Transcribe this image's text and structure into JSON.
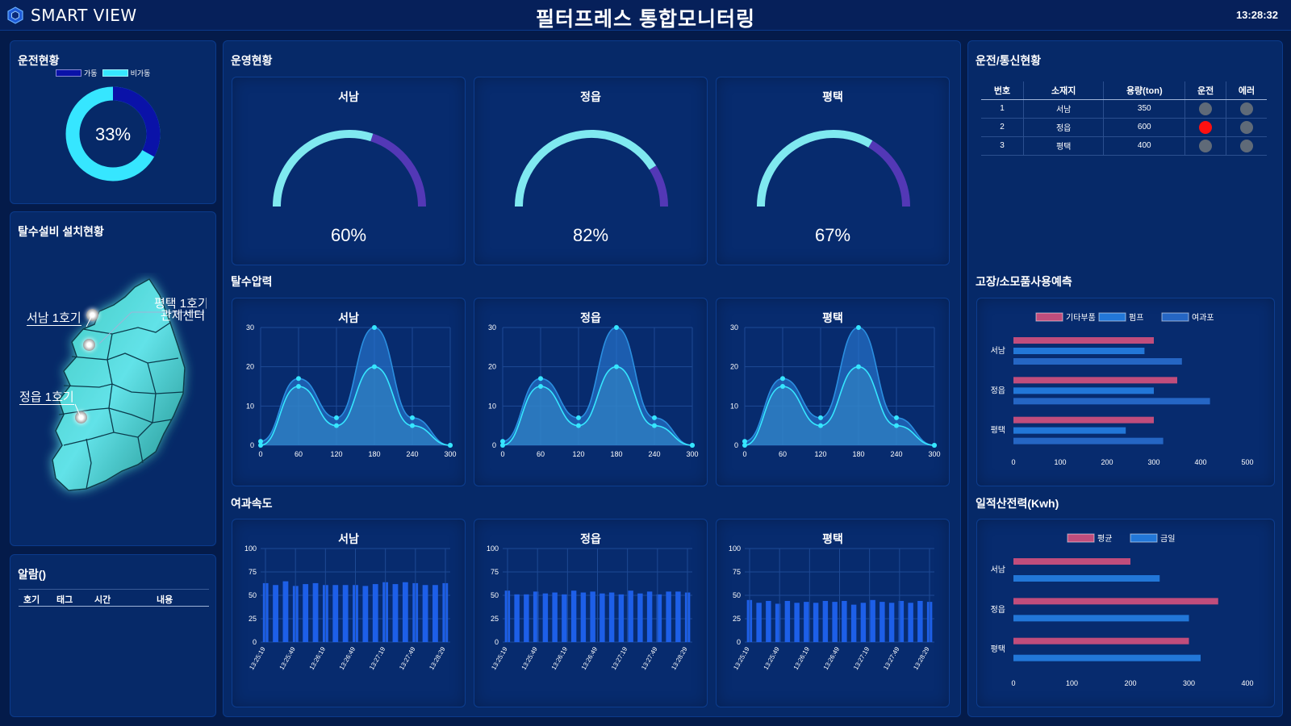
{
  "header": {
    "logo_text": "SMART VIEW",
    "title": "필터프레스 통합모니터링",
    "clock": "13:28:32"
  },
  "operation": {
    "title": "운전현황",
    "legend": [
      "가동",
      "비가동"
    ],
    "percent": 33,
    "percent_label": "33%",
    "colors": {
      "run": "#0a12a8",
      "stop": "#36e6ff"
    }
  },
  "install": {
    "title": "탈수설비 설치현황",
    "markers": [
      {
        "label": "서남 1호기"
      },
      {
        "label": "평택 1호기"
      },
      {
        "label": "관제센터"
      },
      {
        "label": "정읍 1호기"
      }
    ]
  },
  "alarm": {
    "title": "알람()",
    "columns": [
      "호기",
      "태그",
      "시간",
      "내용"
    ]
  },
  "management": {
    "title": "운영현황",
    "gauges": [
      {
        "name": "서남",
        "value": 60,
        "label": "60%"
      },
      {
        "name": "정읍",
        "value": 82,
        "label": "82%"
      },
      {
        "name": "평택",
        "value": 67,
        "label": "67%"
      }
    ],
    "colors": {
      "fill": "#7fe9f0",
      "rest": "#5338b6"
    }
  },
  "pressure": {
    "title": "탈수압력",
    "chart_data": [
      {
        "type": "area",
        "title": "서남",
        "x": [
          0,
          60,
          120,
          180,
          240,
          300
        ],
        "xlim": [
          0,
          300
        ],
        "ylim": [
          0,
          30
        ],
        "yticks": [
          0,
          10,
          20,
          30
        ],
        "series": [
          {
            "x": [
              0,
              60,
              120,
              180,
              240,
              300
            ],
            "values": [
              1,
              17,
              7,
              30,
              7,
              0
            ]
          },
          {
            "x": [
              0,
              60,
              120,
              180,
              240,
              300
            ],
            "values": [
              0,
              15,
              5,
              20,
              5,
              0
            ]
          }
        ]
      },
      {
        "type": "area",
        "title": "정읍",
        "x": [
          0,
          60,
          120,
          180,
          240,
          300
        ],
        "xlim": [
          0,
          300
        ],
        "ylim": [
          0,
          30
        ],
        "yticks": [
          0,
          10,
          20,
          30
        ],
        "series": [
          {
            "x": [
              0,
              60,
              120,
              180,
              240,
              300
            ],
            "values": [
              1,
              17,
              7,
              30,
              7,
              0
            ]
          },
          {
            "x": [
              0,
              60,
              120,
              180,
              240,
              300
            ],
            "values": [
              0,
              15,
              5,
              20,
              5,
              0
            ]
          }
        ]
      },
      {
        "type": "area",
        "title": "평택",
        "x": [
          0,
          60,
          120,
          180,
          240,
          300
        ],
        "xlim": [
          0,
          300
        ],
        "ylim": [
          0,
          30
        ],
        "yticks": [
          0,
          10,
          20,
          30
        ],
        "series": [
          {
            "x": [
              0,
              60,
              120,
              180,
              240,
              300
            ],
            "values": [
              1,
              17,
              7,
              30,
              7,
              0
            ]
          },
          {
            "x": [
              0,
              60,
              120,
              180,
              240,
              300
            ],
            "values": [
              0,
              15,
              5,
              20,
              5,
              0
            ]
          }
        ]
      }
    ]
  },
  "filtration": {
    "title": "여과속도",
    "chart_data": [
      {
        "type": "bar",
        "title": "서남",
        "ylim": [
          0,
          100
        ],
        "yticks": [
          0,
          25,
          50,
          75,
          100
        ],
        "ticklabels": [
          "13:25:19",
          "13:25:49",
          "13:26:19",
          "13:26:49",
          "13:27:19",
          "13:27:49",
          "13:28:29"
        ],
        "values": [
          63,
          61,
          65,
          60,
          62,
          63,
          61,
          61,
          61,
          61,
          60,
          62,
          64,
          62,
          64,
          63,
          61,
          61,
          63
        ]
      },
      {
        "type": "bar",
        "title": "정읍",
        "ylim": [
          0,
          100
        ],
        "yticks": [
          0,
          25,
          50,
          75,
          100
        ],
        "ticklabels": [
          "13:25:19",
          "13:25:49",
          "13:26:19",
          "13:26:49",
          "13:27:19",
          "13:27:49",
          "13:28:29"
        ],
        "values": [
          55,
          51,
          51,
          54,
          52,
          53,
          51,
          55,
          53,
          54,
          52,
          53,
          51,
          55,
          52,
          54,
          51,
          54,
          54,
          53
        ]
      },
      {
        "type": "bar",
        "title": "평택",
        "ylim": [
          0,
          100
        ],
        "yticks": [
          0,
          25,
          50,
          75,
          100
        ],
        "ticklabels": [
          "13:25:19",
          "13:25:49",
          "13:26:19",
          "13:26:49",
          "13:27:19",
          "13:27:49",
          "13:28:29"
        ],
        "values": [
          45,
          42,
          44,
          41,
          44,
          42,
          43,
          42,
          44,
          43,
          44,
          40,
          42,
          45,
          43,
          42,
          44,
          42,
          44,
          43
        ]
      }
    ]
  },
  "status": {
    "title": "운전/통신현황",
    "columns": [
      "번호",
      "소재지",
      "용량(ton)",
      "운전",
      "에러"
    ],
    "rows": [
      {
        "no": "1",
        "site": "서남",
        "capacity": "350",
        "run": "gray",
        "error": "gray"
      },
      {
        "no": "2",
        "site": "정읍",
        "capacity": "600",
        "run": "red",
        "error": "gray"
      },
      {
        "no": "3",
        "site": "평택",
        "capacity": "400",
        "run": "gray",
        "error": "gray"
      }
    ]
  },
  "failure": {
    "title": "고장/소모품사용예측",
    "chart_data": {
      "type": "bar",
      "orientation": "horizontal",
      "categories": [
        "서남",
        "정읍",
        "평택"
      ],
      "xlim": [
        0,
        500
      ],
      "xticks": [
        0,
        100,
        200,
        300,
        400,
        500
      ],
      "series": [
        {
          "name": "기타부품",
          "values": [
            300,
            350,
            300
          ],
          "color": "#c04d7c"
        },
        {
          "name": "펌프",
          "values": [
            280,
            300,
            240
          ],
          "color": "#2277d8"
        },
        {
          "name": "여과포",
          "values": [
            360,
            420,
            320
          ],
          "color": "#2566c4"
        }
      ]
    }
  },
  "power": {
    "title": "일적산전력(Kwh)",
    "chart_data": {
      "type": "bar",
      "orientation": "horizontal",
      "categories": [
        "서남",
        "정읍",
        "평택"
      ],
      "xlim": [
        0,
        400
      ],
      "xticks": [
        0,
        100,
        200,
        300,
        400
      ],
      "series": [
        {
          "name": "평균",
          "values": [
            200,
            350,
            300
          ],
          "color": "#c04d7c"
        },
        {
          "name": "금일",
          "values": [
            250,
            300,
            320
          ],
          "color": "#2277d8"
        }
      ]
    }
  }
}
